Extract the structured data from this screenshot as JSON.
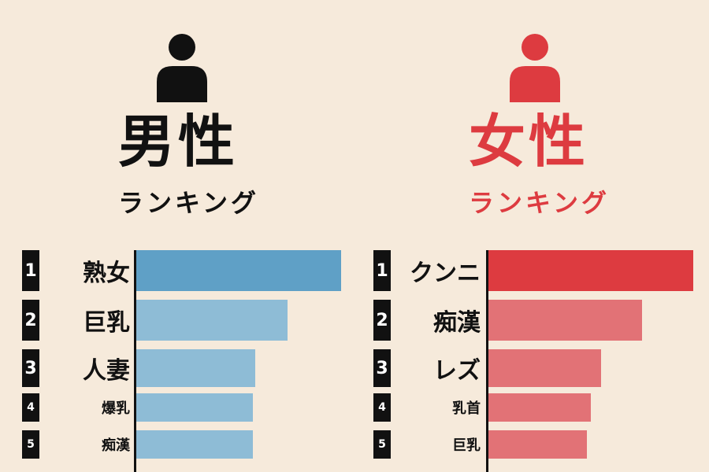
{
  "colors": {
    "background": "#f6eadb",
    "male_text": "#111111",
    "female_text": "#dd3b40",
    "male_bar_top": "#5fa0c6",
    "male_bar": "#8ebcd6",
    "female_bar_top": "#dd3b40",
    "female_bar": "#e27276"
  },
  "icons": {
    "male": "person-icon",
    "female": "person-icon"
  },
  "male": {
    "title": "男性",
    "subtitle": "ランキング"
  },
  "female": {
    "title": "女性",
    "subtitle": "ランキング"
  },
  "chart_data": [
    {
      "type": "bar",
      "orientation": "horizontal",
      "title": "男性 ランキング",
      "categories": [
        "熟女",
        "巨乳",
        "人妻",
        "爆乳",
        "痴漢"
      ],
      "ranks": [
        "1",
        "2",
        "3",
        "4",
        "5"
      ],
      "values": [
        100,
        74,
        58,
        57,
        57
      ]
    },
    {
      "type": "bar",
      "orientation": "horizontal",
      "title": "女性 ランキング",
      "categories": [
        "クンニ",
        "痴漢",
        "レズ",
        "乳首",
        "巨乳"
      ],
      "ranks": [
        "1",
        "2",
        "3",
        "4",
        "5"
      ],
      "values": [
        100,
        75,
        55,
        50,
        48
      ]
    }
  ]
}
